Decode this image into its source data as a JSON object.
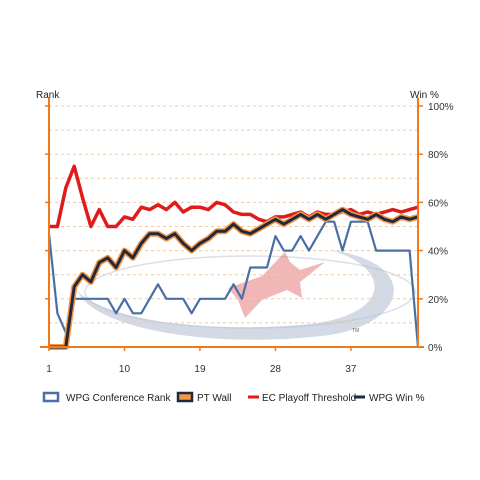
{
  "chart_data": {
    "type": "line",
    "title": "",
    "left_axis": {
      "label": "Rank",
      "ticks": [
        1,
        10,
        19,
        28,
        37
      ]
    },
    "right_axis": {
      "label": "Win %",
      "ticks": [
        "100%",
        "80%",
        "60%",
        "40%",
        "20%",
        "0%"
      ],
      "ylim": [
        0,
        100
      ]
    },
    "x_ticks": [
      "1",
      "10",
      "19",
      "28",
      "37"
    ],
    "x_range": [
      1,
      45
    ],
    "grid": "horizontal dashed",
    "legend_position": "bottom",
    "watermark_text": "TM",
    "colors": {
      "axis": "#f07a1a",
      "grid": "#f4c89c",
      "conference_rank_line": "#4a6fa5",
      "pt_wall_line": "#1f2a40",
      "pt_wall_outline": "#f59642",
      "threshold_line": "#e01b1b",
      "wpg_win_line": "#1f2a40",
      "logo_swoosh": "#b6c2d4",
      "logo_plane": "#dc4b4b"
    },
    "series": [
      {
        "name": "WPG Conference Rank",
        "x": [
          1,
          2,
          3,
          4,
          5,
          6,
          7,
          8,
          9,
          10,
          11,
          12,
          13,
          14,
          15,
          16,
          17,
          18,
          19,
          20,
          21,
          22,
          23,
          24,
          25,
          26,
          27,
          28,
          29,
          30,
          31,
          32,
          33,
          34,
          35,
          36,
          37,
          38,
          39,
          40,
          41,
          42,
          43,
          44,
          45
        ],
        "values": [
          47,
          14,
          6,
          20,
          20,
          20,
          20,
          20,
          14,
          20,
          14,
          14,
          20,
          26,
          20,
          20,
          20,
          14,
          20,
          20,
          20,
          20,
          26,
          20,
          33,
          33,
          33,
          46,
          40,
          40,
          46,
          40,
          46,
          52,
          52,
          40,
          52,
          52,
          52,
          40,
          40,
          40,
          40,
          40,
          0
        ]
      },
      {
        "name": "PT Wall",
        "x": [
          1,
          2,
          3,
          4,
          5,
          6,
          7,
          8,
          9,
          10,
          11,
          12,
          13,
          14,
          15,
          16,
          17,
          18,
          19,
          20,
          21,
          22,
          23,
          24,
          25,
          26,
          27,
          28,
          29,
          30,
          31,
          32,
          33,
          34,
          35,
          36,
          37,
          38,
          39,
          40,
          41,
          42,
          43,
          44,
          45
        ],
        "values": [
          0,
          0,
          0,
          25,
          30,
          27,
          35,
          37,
          33,
          40,
          37,
          43,
          47,
          47,
          45,
          47,
          43,
          40,
          43,
          45,
          48,
          48,
          51,
          48,
          47,
          49,
          51,
          53,
          51,
          53,
          55,
          53,
          55,
          53,
          55,
          57,
          55,
          54,
          53,
          55,
          53,
          52,
          54,
          53,
          54
        ]
      },
      {
        "name": "EC Playoff Threshold",
        "x": [
          1,
          2,
          3,
          4,
          5,
          6,
          7,
          8,
          9,
          10,
          11,
          12,
          13,
          14,
          15,
          16,
          17,
          18,
          19,
          20,
          21,
          22,
          23,
          24,
          25,
          26,
          27,
          28,
          29,
          30,
          31,
          32,
          33,
          34,
          35,
          36,
          37,
          38,
          39,
          40,
          41,
          42,
          43,
          44,
          45
        ],
        "values": [
          50,
          50,
          66,
          75,
          62,
          50,
          57,
          50,
          50,
          54,
          53,
          58,
          57,
          59,
          57,
          60,
          56,
          58,
          58,
          57,
          60,
          59,
          56,
          55,
          55,
          53,
          52,
          54,
          54,
          55,
          56,
          54,
          56,
          55,
          55,
          56,
          57,
          55,
          56,
          55,
          56,
          57,
          56,
          57,
          58
        ]
      },
      {
        "name": "WPG Win %",
        "x": [
          1,
          2,
          3,
          4,
          5,
          6,
          7,
          8,
          9,
          10,
          11,
          12,
          13,
          14,
          15,
          16,
          17,
          18,
          19,
          20,
          21,
          22,
          23,
          24,
          25,
          26,
          27,
          28,
          29,
          30,
          31,
          32,
          33,
          34,
          35,
          36,
          37,
          38,
          39,
          40,
          41,
          42,
          43,
          44,
          45
        ],
        "values": [
          0,
          0,
          0,
          25,
          30,
          27,
          35,
          37,
          33,
          40,
          37,
          43,
          47,
          47,
          45,
          47,
          43,
          40,
          43,
          45,
          48,
          48,
          51,
          48,
          47,
          49,
          51,
          53,
          51,
          53,
          55,
          53,
          55,
          53,
          55,
          57,
          55,
          54,
          53,
          55,
          53,
          52,
          54,
          53,
          54
        ]
      }
    ]
  }
}
